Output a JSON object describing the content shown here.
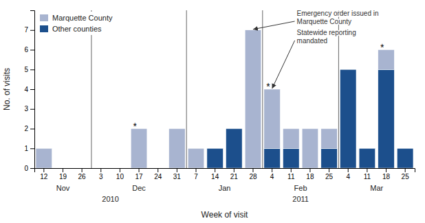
{
  "chart_data": {
    "type": "bar",
    "stacked": true,
    "categories": [
      "12",
      "19",
      "26",
      "3",
      "10",
      "17",
      "24",
      "31",
      "7",
      "14",
      "21",
      "28",
      "4",
      "11",
      "18",
      "25",
      "4",
      "11",
      "18",
      "25"
    ],
    "category_months": [
      "Nov",
      "Nov",
      "Nov",
      "Dec",
      "Dec",
      "Dec",
      "Dec",
      "Dec",
      "Jan",
      "Jan",
      "Jan",
      "Jan",
      "Feb",
      "Feb",
      "Feb",
      "Feb",
      "Mar",
      "Mar",
      "Mar",
      "Mar"
    ],
    "category_years": [
      "2010",
      "2010",
      "2010",
      "2010",
      "2010",
      "2010",
      "2010",
      "2010",
      "2011",
      "2011",
      "2011",
      "2011",
      "2011",
      "2011",
      "2011",
      "2011",
      "2011",
      "2011",
      "2011",
      "2011"
    ],
    "series": [
      {
        "name": "Marquette County",
        "color": "#a8b4d0",
        "values": [
          1,
          0,
          0,
          0,
          0,
          2,
          0,
          2,
          1,
          0,
          0,
          7,
          3,
          1,
          2,
          1,
          0,
          0,
          1,
          0
        ]
      },
      {
        "name": "Other counties",
        "color": "#1c4f8c",
        "values": [
          0,
          0,
          0,
          0,
          0,
          0,
          0,
          0,
          0,
          1,
          2,
          0,
          1,
          1,
          0,
          1,
          5,
          1,
          5,
          1
        ]
      }
    ],
    "xlabel": "Week of visit",
    "ylabel": "No. of visits",
    "ylim": [
      0,
      8
    ],
    "yticks": [
      0,
      1,
      2,
      3,
      4,
      5,
      6,
      7
    ],
    "legend": "upper left",
    "annotations": [
      {
        "text": "Emergency order issued in\nMarquette County",
        "x": 11,
        "y": 7
      },
      {
        "text": "Statewide reporting\nmandated",
        "x": 12,
        "y": 4
      }
    ],
    "footnote_marks": [
      {
        "text": "*",
        "x": 5,
        "y": 2
      },
      {
        "text": "*",
        "x": 12,
        "y": 4
      },
      {
        "text": "*",
        "x": 18,
        "y": 6
      }
    ]
  }
}
